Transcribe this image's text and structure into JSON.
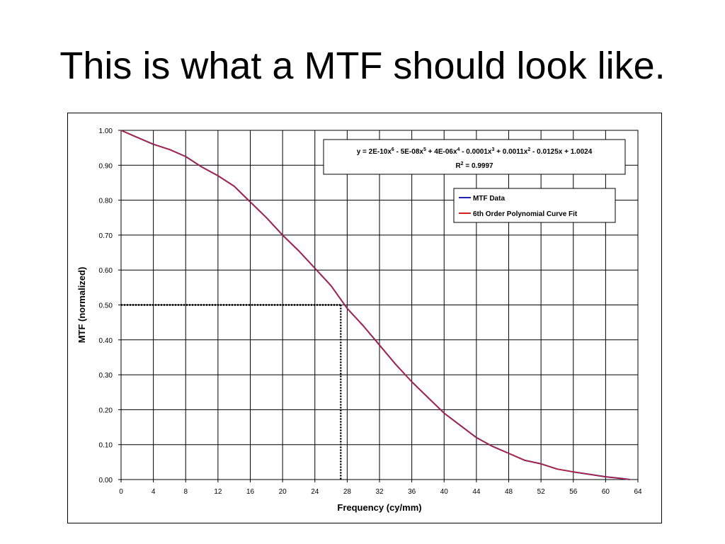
{
  "slide": {
    "title": "This is what a MTF should look like."
  },
  "chart_data": {
    "type": "line",
    "xlabel": "Frequency (cy/mm)",
    "ylabel": "MTF (normalized)",
    "xlim": [
      0,
      64
    ],
    "ylim": [
      0,
      1
    ],
    "x_ticks": [
      0,
      4,
      8,
      12,
      16,
      20,
      24,
      28,
      32,
      36,
      40,
      44,
      48,
      52,
      56,
      60,
      64
    ],
    "y_ticks": [
      0.0,
      0.1,
      0.2,
      0.3,
      0.4,
      0.5,
      0.6,
      0.7,
      0.8,
      0.9,
      1.0
    ],
    "y_tick_labels": [
      "0.00",
      "0.10",
      "0.20",
      "0.30",
      "0.40",
      "0.50",
      "0.60",
      "0.70",
      "0.80",
      "0.90",
      "1.00"
    ],
    "grid": true,
    "legend_position": "top-right",
    "series": [
      {
        "name": "MTF Data",
        "color": "#1f1fb4",
        "x": [
          0,
          2,
          4,
          6,
          8,
          10,
          12,
          14,
          16,
          18,
          20,
          22,
          24,
          26,
          28,
          30,
          32,
          34,
          36,
          38,
          40,
          42,
          44,
          46,
          48,
          50,
          52,
          54,
          56,
          58,
          60,
          62,
          63
        ],
        "y": [
          1.0,
          0.98,
          0.96,
          0.945,
          0.925,
          0.895,
          0.87,
          0.84,
          0.795,
          0.75,
          0.7,
          0.655,
          0.605,
          0.555,
          0.49,
          0.44,
          0.385,
          0.33,
          0.28,
          0.235,
          0.19,
          0.155,
          0.12,
          0.095,
          0.075,
          0.055,
          0.045,
          0.03,
          0.022,
          0.015,
          0.008,
          0.003,
          0.0
        ]
      },
      {
        "name": "6th Order Polynomial Curve Fit",
        "color": "#d02020",
        "x": [
          0,
          2,
          4,
          6,
          8,
          10,
          12,
          14,
          16,
          18,
          20,
          22,
          24,
          26,
          28,
          30,
          32,
          34,
          36,
          38,
          40,
          42,
          44,
          46,
          48,
          50,
          52,
          54,
          56,
          58,
          60,
          62,
          63
        ],
        "y": [
          1.0,
          0.98,
          0.96,
          0.945,
          0.925,
          0.895,
          0.87,
          0.84,
          0.795,
          0.75,
          0.7,
          0.655,
          0.605,
          0.555,
          0.49,
          0.44,
          0.385,
          0.33,
          0.28,
          0.235,
          0.19,
          0.155,
          0.12,
          0.095,
          0.075,
          0.055,
          0.045,
          0.03,
          0.022,
          0.015,
          0.008,
          0.003,
          0.0
        ]
      }
    ],
    "annotations": {
      "equation_prefix": "y = 2E-10x",
      "equation_terms": [
        "6",
        " - 5E-08x",
        "5",
        " + 4E-06x",
        "4",
        " - 0.0001x",
        "3",
        " + 0.0011x",
        "2",
        " - 0.0125x + 1.0024"
      ],
      "r2_label": "R",
      "r2_sup": "2",
      "r2_value": " = 0.9997",
      "half_mtf_y": 0.5,
      "half_mtf_x": 27.2
    },
    "legend": [
      {
        "label": "MTF Data",
        "color": "#1f1fb4"
      },
      {
        "label": "6th Order Polynomial Curve Fit",
        "color": "#d02020"
      }
    ]
  }
}
